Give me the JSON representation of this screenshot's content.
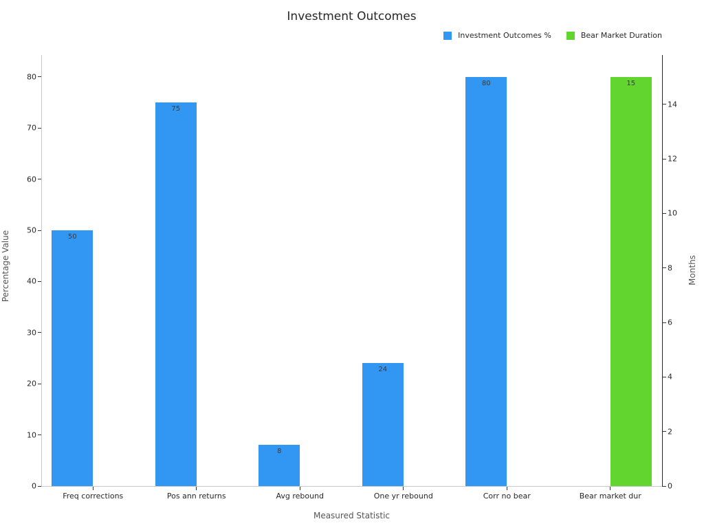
{
  "title": "Investment Outcomes",
  "legend": {
    "position": "top-right",
    "items": [
      {
        "label": "Investment Outcomes %",
        "color": "#3296f3"
      },
      {
        "label": "Bear Market Duration",
        "color": "#62d52e"
      }
    ]
  },
  "chart_data": {
    "type": "bar",
    "title": "Investment Outcomes",
    "xlabel": "Measured Statistic",
    "ylabel_left": "Percentage Value",
    "ylabel_right": "Months",
    "categories": [
      "Freq corrections",
      "Pos ann returns",
      "Avg rebound",
      "One yr rebound",
      "Corr no bear",
      "Bear market dur"
    ],
    "series": [
      {
        "name": "Investment Outcomes %",
        "axis": "left",
        "color": "#3296f3",
        "values": [
          50,
          75,
          8,
          24,
          80,
          null
        ]
      },
      {
        "name": "Bear Market Duration",
        "axis": "right",
        "color": "#62d52e",
        "values": [
          null,
          null,
          null,
          null,
          null,
          15
        ]
      }
    ],
    "left_axis": {
      "ticks": [
        0,
        10,
        20,
        30,
        40,
        50,
        60,
        70,
        80
      ],
      "range": [
        0,
        84.3
      ]
    },
    "right_axis": {
      "ticks": [
        0,
        2,
        4,
        6,
        8,
        10,
        12,
        14
      ],
      "range": [
        0,
        15.81
      ]
    },
    "grid": false,
    "bar_value_labels": true
  }
}
